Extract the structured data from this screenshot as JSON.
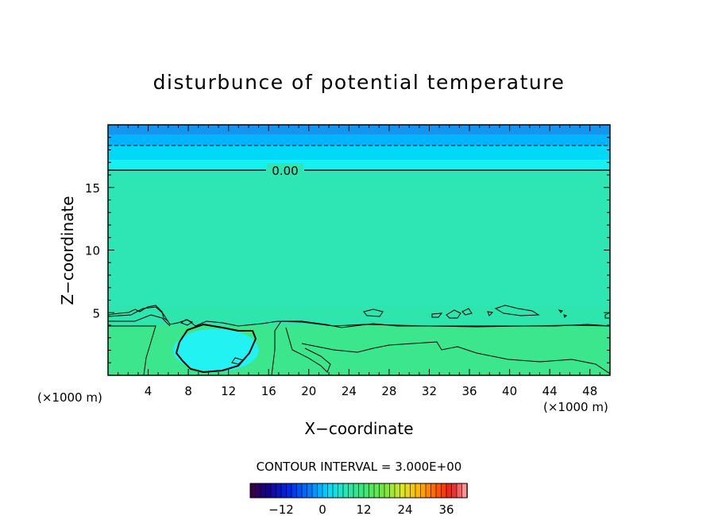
{
  "chart_data": {
    "type": "heatmap",
    "title": "disturbunce of potential temperature",
    "xlabel": "X−coordinate",
    "ylabel": "Z−coordinate",
    "x_unit": "(×1000 m)",
    "y_unit": "(×1000 m)",
    "xlim": [
      0,
      50
    ],
    "ylim": [
      0,
      20
    ],
    "x_ticks": [
      4,
      8,
      12,
      16,
      20,
      24,
      28,
      32,
      36,
      40,
      44,
      48
    ],
    "x_ticklabels": [
      "4",
      "8",
      "12",
      "16",
      "20",
      "24",
      "28",
      "32",
      "36",
      "40",
      "44",
      "48"
    ],
    "y_ticks": [
      5,
      10,
      15
    ],
    "y_ticklabels": [
      "5",
      "10",
      "15"
    ],
    "contour_labels": [
      {
        "text": "0.00",
        "x": 17.5,
        "y": 16.3
      }
    ],
    "contour_interval_text": "CONTOUR INTERVAL = 3.000E+00",
    "colorbar": {
      "range": [
        -21,
        42
      ],
      "ticks": [
        -12,
        0,
        12,
        24,
        36
      ],
      "ticklabels": [
        "−12",
        "0",
        "12",
        "24",
        "36"
      ]
    },
    "field_bands": [
      {
        "zmin": 0,
        "zmax": 4,
        "value": 3,
        "color": "#3ce68c"
      },
      {
        "zmin": 4,
        "zmax": 16.3,
        "value": 0.5,
        "color": "#2ee6b4"
      },
      {
        "zmin": 16.3,
        "zmax": 17.2,
        "value": -2,
        "color": "#17f0f0"
      },
      {
        "zmin": 17.2,
        "zmax": 18.3,
        "value": -4,
        "color": "#00d8f8"
      },
      {
        "zmin": 18.3,
        "zmax": 19.2,
        "value": -6,
        "color": "#00b4ff"
      },
      {
        "zmin": 19.2,
        "zmax": 20,
        "value": -8,
        "color": "#1496f0"
      }
    ],
    "cold_pool": {
      "x_range": [
        6.5,
        15
      ],
      "z_range": [
        0.3,
        3.7
      ],
      "value": -2,
      "color": "#22f2f2"
    },
    "colors": {
      "background": "#ffffff",
      "axis": "#000000",
      "contour": "#000000"
    }
  }
}
